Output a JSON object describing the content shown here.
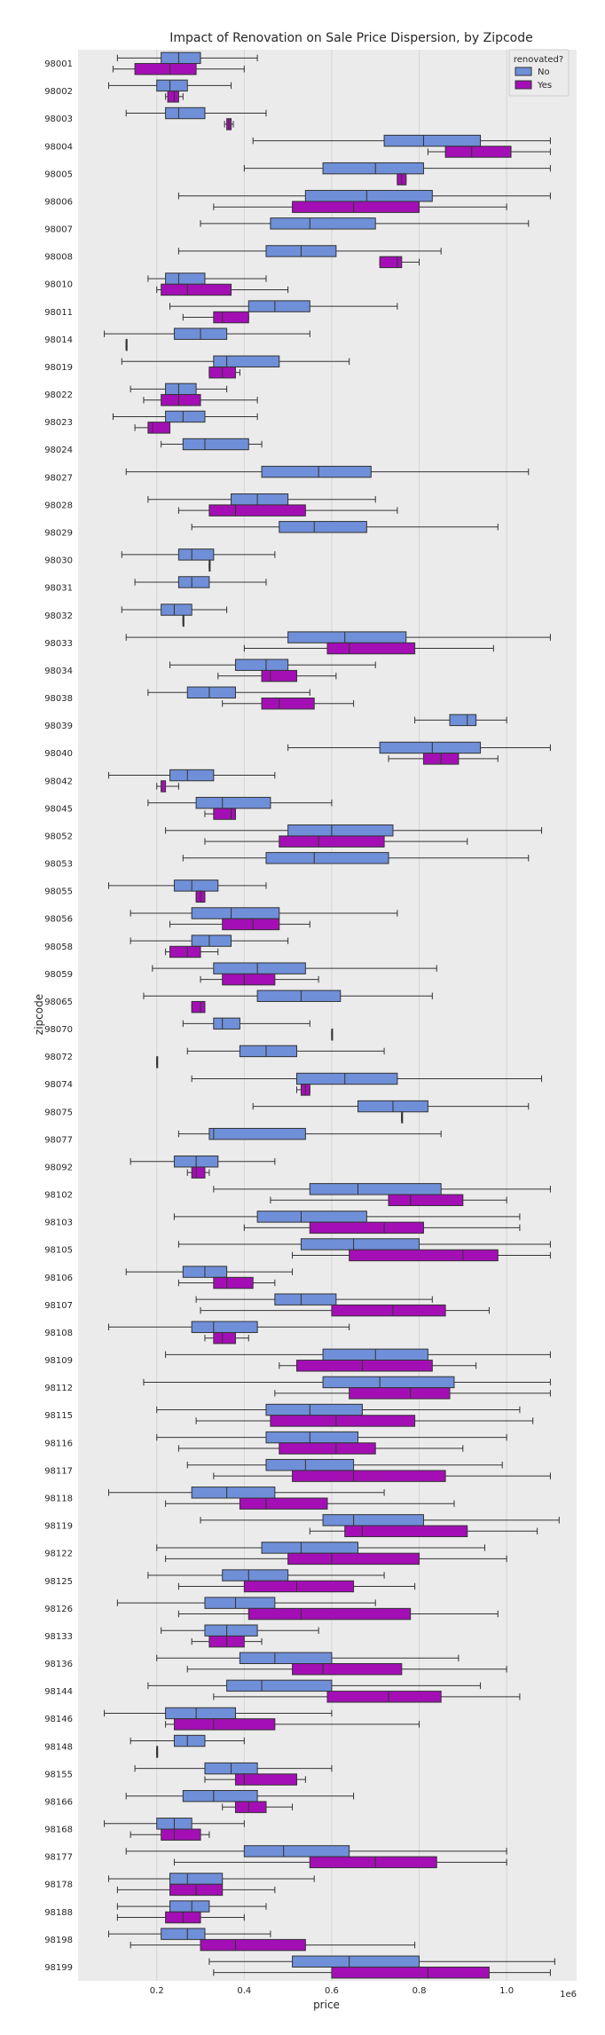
{
  "chart_data": {
    "type": "boxplot",
    "orientation": "horizontal",
    "title": "Impact of Renovation on Sale Price Dispersion, by Zipcode",
    "xlabel": "price",
    "ylabel": "zipcode",
    "x_offset_text": "1e6",
    "x_ticks": [
      0.2,
      0.4,
      0.6,
      0.8,
      1.0
    ],
    "x_tick_labels": [
      "0.2",
      "0.4",
      "0.6",
      "0.8",
      "1.0"
    ],
    "xlim": [
      0.02,
      1.16
    ],
    "grid": true,
    "legend": {
      "title": "renovated?",
      "placement": "top-right",
      "entries": [
        {
          "label": "No",
          "color": "#6f8fd8"
        },
        {
          "label": "Yes",
          "color": "#a30fb5"
        }
      ]
    },
    "colors": {
      "background": "#ebebeb",
      "grid": "#ffffff",
      "no": "#6f8fd8",
      "yes": "#a30fb5",
      "edge": "#333333"
    },
    "categories": [
      {
        "zipcode": "98001",
        "no": [
          0.11,
          0.21,
          0.25,
          0.3,
          0.43
        ],
        "yes": [
          0.1,
          0.15,
          0.23,
          0.29,
          0.4
        ]
      },
      {
        "zipcode": "98002",
        "no": [
          0.09,
          0.2,
          0.23,
          0.27,
          0.37
        ],
        "yes": [
          0.22,
          0.225,
          0.24,
          0.25,
          0.26
        ]
      },
      {
        "zipcode": "98003",
        "no": [
          0.13,
          0.22,
          0.25,
          0.31,
          0.45
        ],
        "yes": [
          0.355,
          0.36,
          0.365,
          0.37,
          0.375
        ]
      },
      {
        "zipcode": "98004",
        "no": [
          0.42,
          0.72,
          0.81,
          0.94,
          1.1
        ],
        "yes": [
          0.82,
          0.86,
          0.92,
          1.01,
          1.1
        ]
      },
      {
        "zipcode": "98005",
        "no": [
          0.4,
          0.58,
          0.7,
          0.81,
          1.1
        ],
        "yes": [
          0.75,
          0.75,
          0.76,
          0.77,
          0.77
        ]
      },
      {
        "zipcode": "98006",
        "no": [
          0.25,
          0.54,
          0.68,
          0.83,
          1.1
        ],
        "yes": [
          0.33,
          0.51,
          0.65,
          0.8,
          1.0
        ]
      },
      {
        "zipcode": "98007",
        "no": [
          0.3,
          0.46,
          0.55,
          0.7,
          1.05
        ],
        "yes": null
      },
      {
        "zipcode": "98008",
        "no": [
          0.25,
          0.45,
          0.53,
          0.61,
          0.85
        ],
        "yes": [
          0.71,
          0.71,
          0.75,
          0.76,
          0.8
        ]
      },
      {
        "zipcode": "98010",
        "no": [
          0.18,
          0.22,
          0.25,
          0.31,
          0.45
        ],
        "yes": [
          0.2,
          0.21,
          0.27,
          0.37,
          0.5
        ]
      },
      {
        "zipcode": "98011",
        "no": [
          0.23,
          0.41,
          0.47,
          0.55,
          0.75
        ],
        "yes": [
          0.26,
          0.33,
          0.35,
          0.41,
          0.41
        ]
      },
      {
        "zipcode": "98014",
        "no": [
          0.08,
          0.24,
          0.3,
          0.36,
          0.55
        ],
        "yes": [
          0.13,
          0.13,
          0.13,
          0.13,
          0.13
        ]
      },
      {
        "zipcode": "98019",
        "no": [
          0.12,
          0.33,
          0.36,
          0.48,
          0.64
        ],
        "yes": [
          0.32,
          0.32,
          0.35,
          0.38,
          0.39
        ]
      },
      {
        "zipcode": "98022",
        "no": [
          0.14,
          0.22,
          0.25,
          0.29,
          0.36
        ],
        "yes": [
          0.17,
          0.21,
          0.25,
          0.3,
          0.43
        ]
      },
      {
        "zipcode": "98023",
        "no": [
          0.1,
          0.22,
          0.26,
          0.31,
          0.43
        ],
        "yes": [
          0.15,
          0.18,
          0.19,
          0.23,
          0.23
        ]
      },
      {
        "zipcode": "98024",
        "no": [
          0.21,
          0.26,
          0.31,
          0.41,
          0.44
        ],
        "yes": null
      },
      {
        "zipcode": "98027",
        "no": [
          0.13,
          0.44,
          0.57,
          0.69,
          1.05
        ],
        "yes": null
      },
      {
        "zipcode": "98028",
        "no": [
          0.18,
          0.37,
          0.43,
          0.5,
          0.7
        ],
        "yes": [
          0.25,
          0.32,
          0.38,
          0.54,
          0.75
        ]
      },
      {
        "zipcode": "98029",
        "no": [
          0.28,
          0.48,
          0.56,
          0.68,
          0.98
        ],
        "yes": null
      },
      {
        "zipcode": "98030",
        "no": [
          0.12,
          0.25,
          0.28,
          0.33,
          0.47
        ],
        "yes": [
          0.32,
          0.32,
          0.32,
          0.32,
          0.32
        ]
      },
      {
        "zipcode": "98031",
        "no": [
          0.15,
          0.25,
          0.28,
          0.32,
          0.45
        ],
        "yes": null
      },
      {
        "zipcode": "98032",
        "no": [
          0.12,
          0.21,
          0.24,
          0.28,
          0.36
        ],
        "yes": [
          0.26,
          0.26,
          0.26,
          0.26,
          0.26
        ]
      },
      {
        "zipcode": "98033",
        "no": [
          0.13,
          0.5,
          0.63,
          0.77,
          1.1
        ],
        "yes": [
          0.4,
          0.59,
          0.64,
          0.79,
          0.97
        ]
      },
      {
        "zipcode": "98034",
        "no": [
          0.23,
          0.38,
          0.45,
          0.5,
          0.7
        ],
        "yes": [
          0.34,
          0.44,
          0.46,
          0.52,
          0.61
        ]
      },
      {
        "zipcode": "98038",
        "no": [
          0.18,
          0.27,
          0.32,
          0.38,
          0.55
        ],
        "yes": [
          0.35,
          0.44,
          0.48,
          0.56,
          0.65
        ]
      },
      {
        "zipcode": "98039",
        "no": [
          0.79,
          0.87,
          0.91,
          0.93,
          1.0
        ],
        "yes": null
      },
      {
        "zipcode": "98040",
        "no": [
          0.5,
          0.71,
          0.83,
          0.94,
          1.1
        ],
        "yes": [
          0.73,
          0.81,
          0.85,
          0.89,
          0.98
        ]
      },
      {
        "zipcode": "98042",
        "no": [
          0.09,
          0.23,
          0.27,
          0.33,
          0.47
        ],
        "yes": [
          0.2,
          0.21,
          0.21,
          0.22,
          0.25
        ]
      },
      {
        "zipcode": "98045",
        "no": [
          0.18,
          0.29,
          0.35,
          0.46,
          0.6
        ],
        "yes": [
          0.31,
          0.33,
          0.37,
          0.38,
          0.38
        ]
      },
      {
        "zipcode": "98052",
        "no": [
          0.22,
          0.5,
          0.6,
          0.74,
          1.08
        ],
        "yes": [
          0.31,
          0.48,
          0.57,
          0.72,
          0.91
        ]
      },
      {
        "zipcode": "98053",
        "no": [
          0.26,
          0.45,
          0.56,
          0.73,
          1.05
        ],
        "yes": null
      },
      {
        "zipcode": "98055",
        "no": [
          0.09,
          0.24,
          0.28,
          0.34,
          0.45
        ],
        "yes": [
          0.29,
          0.29,
          0.3,
          0.31,
          0.31
        ]
      },
      {
        "zipcode": "98056",
        "no": [
          0.14,
          0.28,
          0.37,
          0.48,
          0.75
        ],
        "yes": [
          0.23,
          0.35,
          0.42,
          0.48,
          0.55
        ]
      },
      {
        "zipcode": "98058",
        "no": [
          0.14,
          0.28,
          0.32,
          0.37,
          0.5
        ],
        "yes": [
          0.22,
          0.23,
          0.27,
          0.3,
          0.34
        ]
      },
      {
        "zipcode": "98059",
        "no": [
          0.19,
          0.33,
          0.43,
          0.54,
          0.84
        ],
        "yes": [
          0.3,
          0.35,
          0.4,
          0.47,
          0.57
        ]
      },
      {
        "zipcode": "98065",
        "no": [
          0.17,
          0.43,
          0.53,
          0.62,
          0.83
        ],
        "yes": [
          0.28,
          0.28,
          0.3,
          0.31,
          0.31
        ]
      },
      {
        "zipcode": "98070",
        "no": [
          0.26,
          0.33,
          0.35,
          0.39,
          0.55
        ],
        "yes": [
          0.6,
          0.6,
          0.6,
          0.6,
          0.6
        ]
      },
      {
        "zipcode": "98072",
        "no": [
          0.27,
          0.39,
          0.45,
          0.52,
          0.72
        ],
        "yes": [
          0.2,
          0.2,
          0.2,
          0.2,
          0.2
        ]
      },
      {
        "zipcode": "98074",
        "no": [
          0.28,
          0.52,
          0.63,
          0.75,
          1.08
        ],
        "yes": [
          0.52,
          0.53,
          0.54,
          0.55,
          0.55
        ]
      },
      {
        "zipcode": "98075",
        "no": [
          0.42,
          0.66,
          0.74,
          0.82,
          1.05
        ],
        "yes": [
          0.76,
          0.76,
          0.76,
          0.76,
          0.76
        ]
      },
      {
        "zipcode": "98077",
        "no": [
          0.25,
          0.32,
          0.33,
          0.54,
          0.85
        ],
        "yes": null
      },
      {
        "zipcode": "98092",
        "no": [
          0.14,
          0.24,
          0.29,
          0.34,
          0.47
        ],
        "yes": [
          0.27,
          0.28,
          0.29,
          0.31,
          0.32
        ]
      },
      {
        "zipcode": "98102",
        "no": [
          0.33,
          0.55,
          0.66,
          0.85,
          1.1
        ],
        "yes": [
          0.46,
          0.73,
          0.78,
          0.9,
          1.0
        ]
      },
      {
        "zipcode": "98103",
        "no": [
          0.24,
          0.43,
          0.53,
          0.68,
          1.03
        ],
        "yes": [
          0.4,
          0.55,
          0.72,
          0.81,
          1.03
        ]
      },
      {
        "zipcode": "98105",
        "no": [
          0.25,
          0.53,
          0.65,
          0.8,
          1.1
        ],
        "yes": [
          0.51,
          0.64,
          0.9,
          0.98,
          1.1
        ]
      },
      {
        "zipcode": "98106",
        "no": [
          0.13,
          0.26,
          0.31,
          0.36,
          0.51
        ],
        "yes": [
          0.25,
          0.33,
          0.36,
          0.42,
          0.47
        ]
      },
      {
        "zipcode": "98107",
        "no": [
          0.29,
          0.47,
          0.53,
          0.61,
          0.83
        ],
        "yes": [
          0.3,
          0.6,
          0.74,
          0.86,
          0.96
        ]
      },
      {
        "zipcode": "98108",
        "no": [
          0.09,
          0.28,
          0.33,
          0.43,
          0.64
        ],
        "yes": [
          0.31,
          0.33,
          0.35,
          0.38,
          0.41
        ]
      },
      {
        "zipcode": "98109",
        "no": [
          0.22,
          0.58,
          0.7,
          0.82,
          1.1
        ],
        "yes": [
          0.48,
          0.52,
          0.67,
          0.83,
          0.93
        ]
      },
      {
        "zipcode": "98112",
        "no": [
          0.17,
          0.58,
          0.71,
          0.88,
          1.1
        ],
        "yes": [
          0.47,
          0.64,
          0.78,
          0.87,
          1.1
        ]
      },
      {
        "zipcode": "98115",
        "no": [
          0.2,
          0.45,
          0.55,
          0.67,
          1.03
        ],
        "yes": [
          0.29,
          0.46,
          0.61,
          0.79,
          1.06
        ]
      },
      {
        "zipcode": "98116",
        "no": [
          0.2,
          0.45,
          0.55,
          0.66,
          1.0
        ],
        "yes": [
          0.25,
          0.48,
          0.61,
          0.7,
          0.9
        ]
      },
      {
        "zipcode": "98117",
        "no": [
          0.27,
          0.45,
          0.54,
          0.65,
          0.99
        ],
        "yes": [
          0.33,
          0.51,
          0.65,
          0.86,
          1.1
        ]
      },
      {
        "zipcode": "98118",
        "no": [
          0.09,
          0.28,
          0.36,
          0.47,
          0.72
        ],
        "yes": [
          0.22,
          0.39,
          0.45,
          0.59,
          0.88
        ]
      },
      {
        "zipcode": "98119",
        "no": [
          0.3,
          0.58,
          0.65,
          0.81,
          1.12
        ],
        "yes": [
          0.55,
          0.63,
          0.67,
          0.91,
          1.07
        ]
      },
      {
        "zipcode": "98122",
        "no": [
          0.2,
          0.44,
          0.53,
          0.66,
          0.95
        ],
        "yes": [
          0.22,
          0.5,
          0.6,
          0.8,
          1.0
        ]
      },
      {
        "zipcode": "98125",
        "no": [
          0.18,
          0.35,
          0.41,
          0.5,
          0.72
        ],
        "yes": [
          0.25,
          0.4,
          0.52,
          0.65,
          0.79
        ]
      },
      {
        "zipcode": "98126",
        "no": [
          0.11,
          0.31,
          0.38,
          0.47,
          0.7
        ],
        "yes": [
          0.25,
          0.41,
          0.53,
          0.78,
          0.98
        ]
      },
      {
        "zipcode": "98133",
        "no": [
          0.21,
          0.31,
          0.36,
          0.43,
          0.57
        ],
        "yes": [
          0.28,
          0.32,
          0.36,
          0.4,
          0.44
        ]
      },
      {
        "zipcode": "98136",
        "no": [
          0.2,
          0.39,
          0.47,
          0.6,
          0.89
        ],
        "yes": [
          0.27,
          0.51,
          0.58,
          0.76,
          1.0
        ]
      },
      {
        "zipcode": "98144",
        "no": [
          0.18,
          0.36,
          0.44,
          0.6,
          0.94
        ],
        "yes": [
          0.33,
          0.59,
          0.73,
          0.85,
          1.03
        ]
      },
      {
        "zipcode": "98146",
        "no": [
          0.08,
          0.22,
          0.29,
          0.38,
          0.6
        ],
        "yes": [
          0.22,
          0.24,
          0.33,
          0.47,
          0.8
        ]
      },
      {
        "zipcode": "98148",
        "no": [
          0.14,
          0.24,
          0.27,
          0.31,
          0.4
        ],
        "yes": [
          0.2,
          0.2,
          0.2,
          0.2,
          0.2
        ]
      },
      {
        "zipcode": "98155",
        "no": [
          0.15,
          0.31,
          0.37,
          0.43,
          0.6
        ],
        "yes": [
          0.31,
          0.38,
          0.4,
          0.52,
          0.54
        ]
      },
      {
        "zipcode": "98166",
        "no": [
          0.13,
          0.26,
          0.33,
          0.43,
          0.65
        ],
        "yes": [
          0.35,
          0.38,
          0.41,
          0.45,
          0.51
        ]
      },
      {
        "zipcode": "98168",
        "no": [
          0.08,
          0.2,
          0.24,
          0.28,
          0.4
        ],
        "yes": [
          0.14,
          0.21,
          0.24,
          0.3,
          0.32
        ]
      },
      {
        "zipcode": "98177",
        "no": [
          0.13,
          0.4,
          0.49,
          0.64,
          1.0
        ],
        "yes": [
          0.24,
          0.55,
          0.7,
          0.84,
          1.0
        ]
      },
      {
        "zipcode": "98178",
        "no": [
          0.09,
          0.23,
          0.27,
          0.35,
          0.56
        ],
        "yes": [
          0.11,
          0.23,
          0.29,
          0.35,
          0.47
        ]
      },
      {
        "zipcode": "98188",
        "no": [
          0.11,
          0.23,
          0.28,
          0.32,
          0.45
        ],
        "yes": [
          0.11,
          0.22,
          0.26,
          0.3,
          0.4
        ]
      },
      {
        "zipcode": "98198",
        "no": [
          0.09,
          0.21,
          0.27,
          0.31,
          0.46
        ],
        "yes": [
          0.14,
          0.3,
          0.38,
          0.54,
          0.79
        ]
      },
      {
        "zipcode": "98199",
        "no": [
          0.32,
          0.51,
          0.64,
          0.8,
          1.11
        ],
        "yes": [
          0.33,
          0.6,
          0.82,
          0.96,
          1.1
        ]
      }
    ]
  }
}
